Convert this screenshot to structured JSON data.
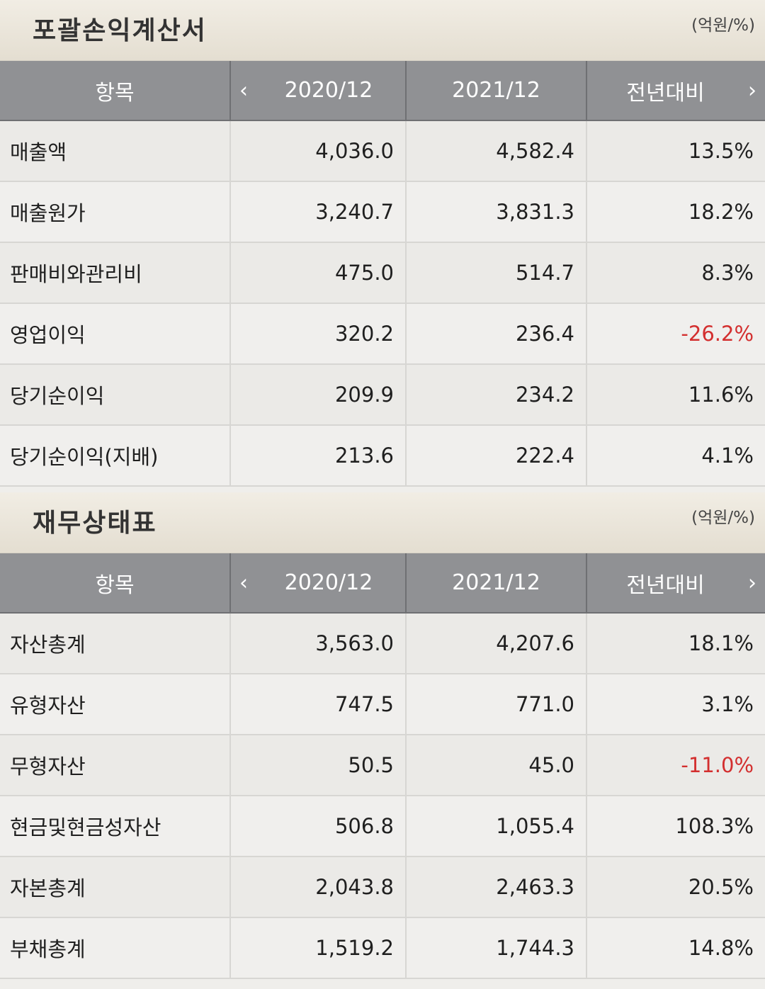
{
  "income": {
    "title": "포괄손익계산서",
    "unit": "(억원/%)",
    "headers": [
      "항목",
      "2020/12",
      "2021/12",
      "전년대비"
    ],
    "rows": [
      {
        "item": "매출액",
        "y2020": "4,036.0",
        "y2021": "4,582.4",
        "yoy": "13.5%"
      },
      {
        "item": "매출원가",
        "y2020": "3,240.7",
        "y2021": "3,831.3",
        "yoy": "18.2%"
      },
      {
        "item": "판매비와관리비",
        "y2020": "475.0",
        "y2021": "514.7",
        "yoy": "8.3%"
      },
      {
        "item": "영업이익",
        "y2020": "320.2",
        "y2021": "236.4",
        "yoy": "-26.2%"
      },
      {
        "item": "당기순이익",
        "y2020": "209.9",
        "y2021": "234.2",
        "yoy": "11.6%"
      },
      {
        "item": "당기순이익(지배)",
        "y2020": "213.6",
        "y2021": "222.4",
        "yoy": "4.1%"
      }
    ]
  },
  "balance": {
    "title": "재무상태표",
    "unit": "(억원/%)",
    "headers": [
      "항목",
      "2020/12",
      "2021/12",
      "전년대비"
    ],
    "rows": [
      {
        "item": "자산총계",
        "y2020": "3,563.0",
        "y2021": "4,207.6",
        "yoy": "18.1%"
      },
      {
        "item": "유형자산",
        "y2020": "747.5",
        "y2021": "771.0",
        "yoy": "3.1%"
      },
      {
        "item": "무형자산",
        "y2020": "50.5",
        "y2021": "45.0",
        "yoy": "-11.0%"
      },
      {
        "item": "현금및현금성자산",
        "y2020": "506.8",
        "y2021": "1,055.4",
        "yoy": "108.3%"
      },
      {
        "item": "자본총계",
        "y2020": "2,043.8",
        "y2021": "2,463.3",
        "yoy": "20.5%"
      },
      {
        "item": "부채총계",
        "y2020": "1,519.2",
        "y2021": "1,744.3",
        "yoy": "14.8%"
      }
    ]
  },
  "icons": {
    "prev": "chevron-left-icon",
    "next": "chevron-right-icon"
  },
  "colors": {
    "header_bg": "#909194",
    "negative": "#d32f2f",
    "row_bg": "#f0efed"
  }
}
